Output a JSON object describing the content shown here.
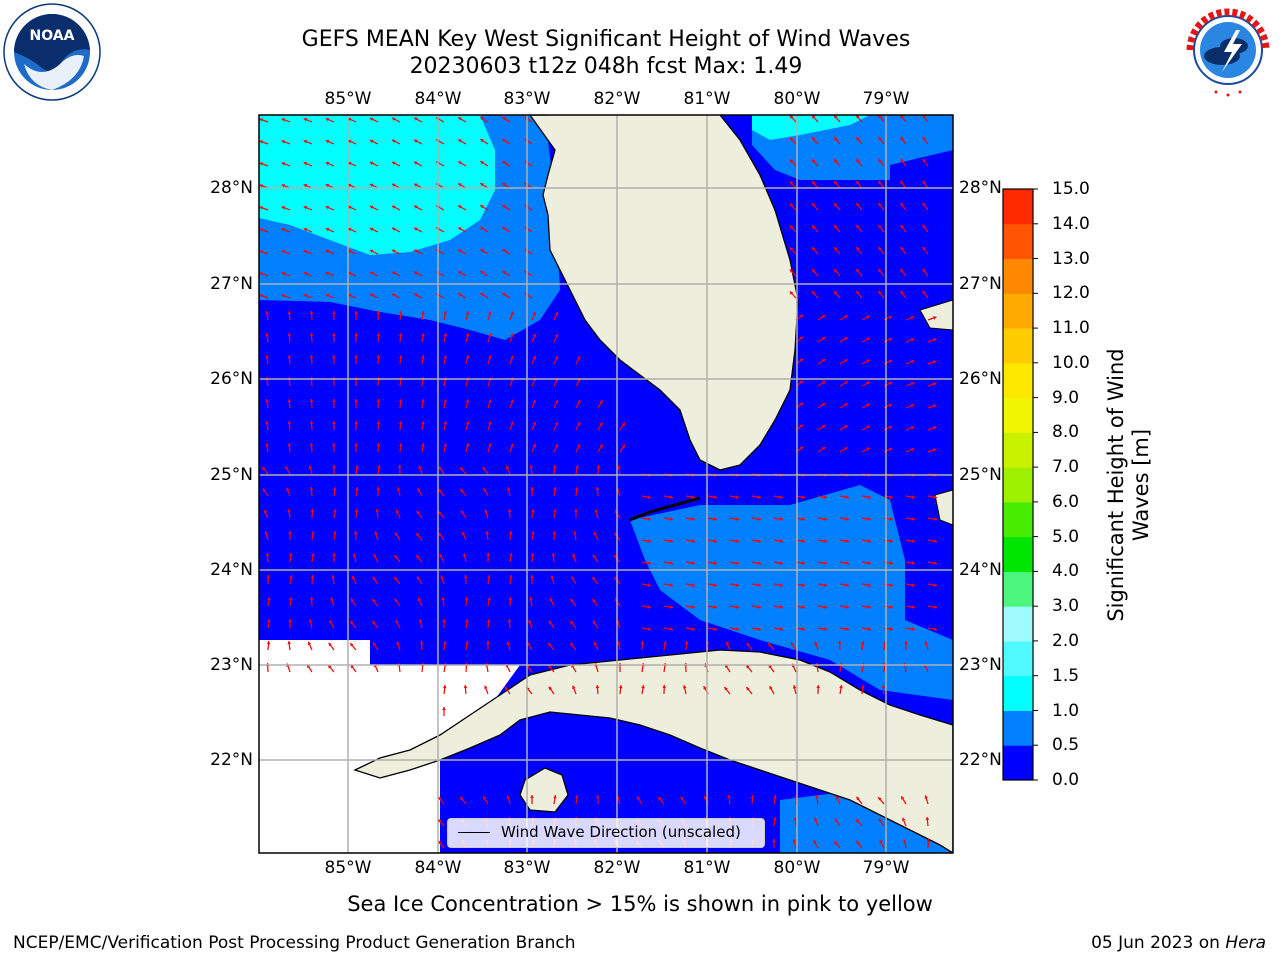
{
  "title": "GEFS MEAN Key West Significant Height of Wind Waves",
  "subtitle": "20230603 t12z 048h fcst   Max: 1.49",
  "lon_labels": [
    "85°W",
    "84°W",
    "83°W",
    "82°W",
    "81°W",
    "80°W",
    "79°W"
  ],
  "lat_labels": [
    "28°N",
    "27°N",
    "26°N",
    "25°N",
    "24°N",
    "23°N",
    "22°N"
  ],
  "colorbar": {
    "label": "Significant Height of Wind Waves [m]",
    "ticks": [
      "15.0",
      "14.0",
      "13.0",
      "12.0",
      "11.0",
      "10.0",
      "9.0",
      "8.0",
      "7.0",
      "6.0",
      "5.0",
      "4.0",
      "3.0",
      "2.0",
      "1.5",
      "1.0",
      "0.5",
      "0.0"
    ],
    "colors": [
      "#0000ff",
      "#0080ff",
      "#00ffff",
      "#4ff9ff",
      "#9ffbff",
      "#4cf57c",
      "#00e600",
      "#48ec00",
      "#9cf000",
      "#c8f200",
      "#f2f500",
      "#ffe800",
      "#ffcc00",
      "#ffaa00",
      "#ff8800",
      "#ff5500",
      "#ff2a00"
    ]
  },
  "legend": {
    "label": "Wind Wave Direction (unscaled)"
  },
  "colors": {
    "land": "#eeeedd",
    "arrow": "#ff0000",
    "coast": "#000000",
    "grid": "#b0b0b0"
  },
  "footnote": "Sea Ice Concentration > 15% is shown in pink to yellow",
  "credit": "NCEP/EMC/Verification Post Processing Product Generation Branch",
  "date": "05 Jun 2023 on",
  "host": "Hera",
  "logos": {
    "left": "noaa-logo",
    "right": "nws-logo"
  }
}
